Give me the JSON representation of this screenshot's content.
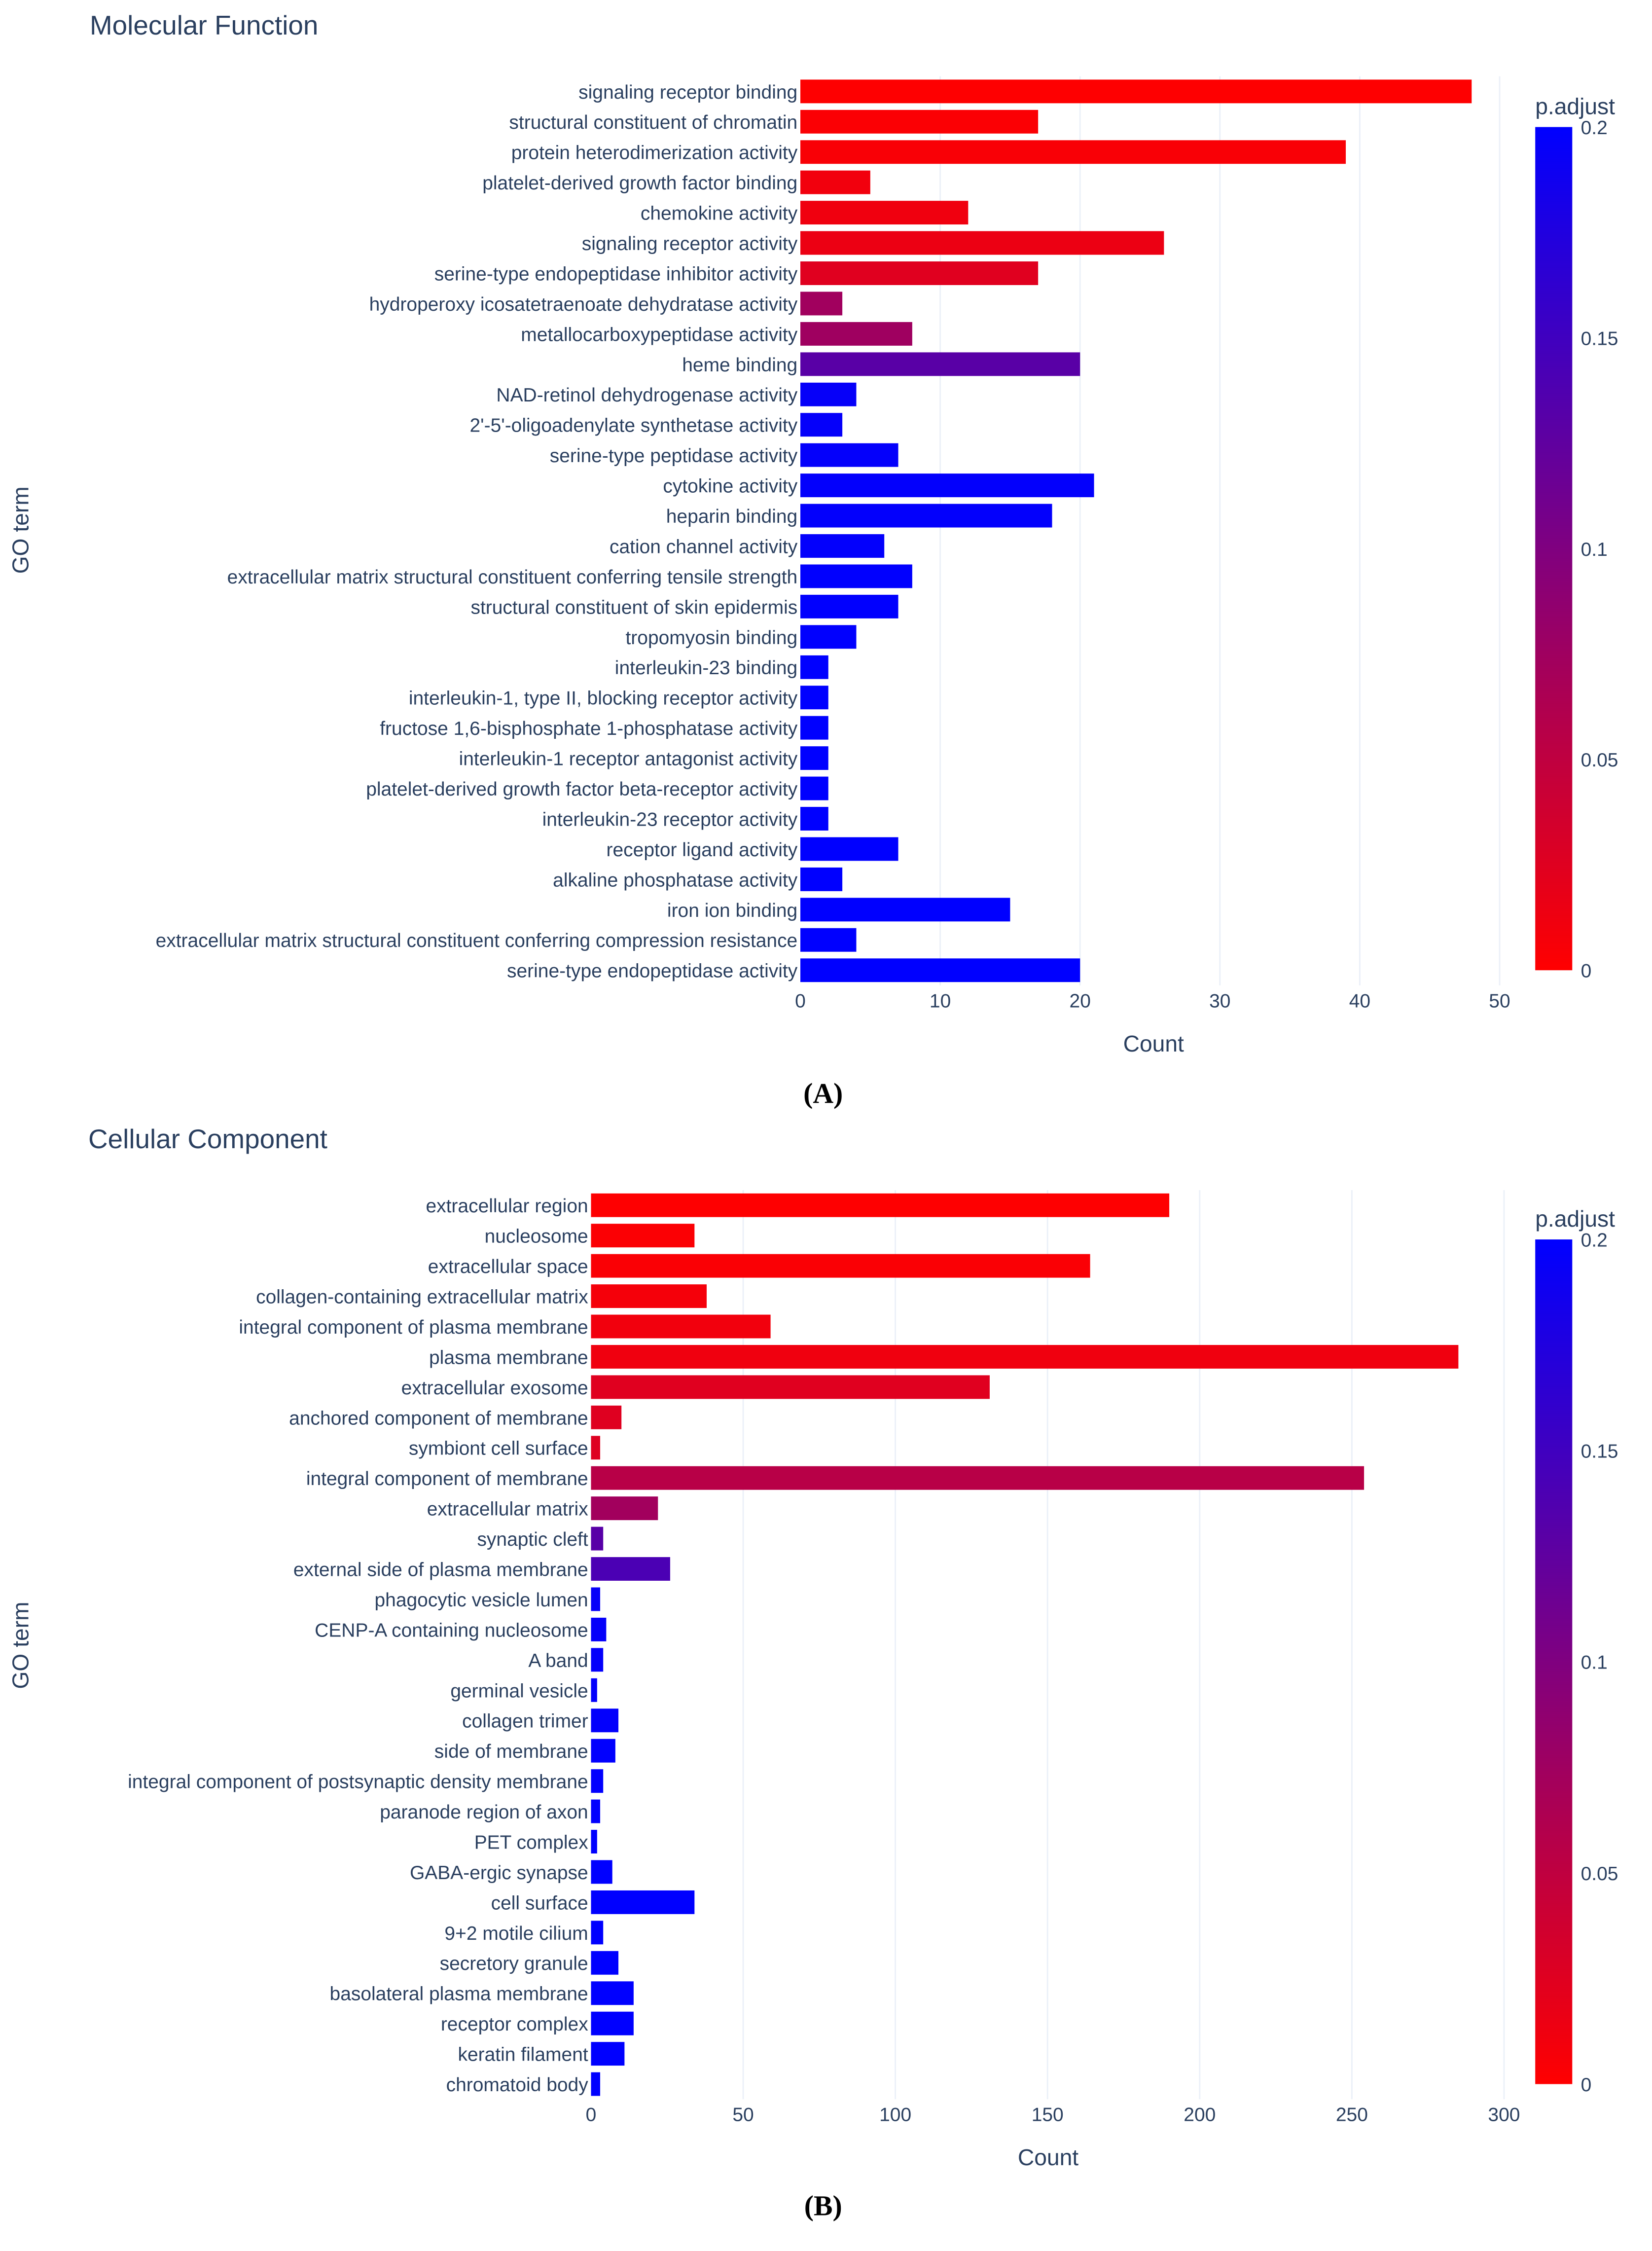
{
  "colors": {
    "low": "#ff0000",
    "high": "#0000ff"
  },
  "chart_data": [
    {
      "type": "bar",
      "orientation": "horizontal",
      "panel_label": "(A)",
      "title": "Molecular Function",
      "xlabel": "Count",
      "ylabel": "GO term",
      "xlim": [
        0,
        54
      ],
      "xticks": [
        0,
        10,
        20,
        30,
        40,
        50
      ],
      "grid": true,
      "colorbar": {
        "title": "p.adjust",
        "range": [
          0,
          0.2
        ],
        "ticks": [
          "0",
          "0.05",
          "0.1",
          "0.15",
          "0.2"
        ]
      },
      "categories": [
        "signaling receptor binding",
        "structural constituent of chromatin",
        "protein heterodimerization activity",
        "platelet-derived growth factor binding",
        "chemokine activity",
        "signaling receptor activity",
        "serine-type endopeptidase inhibitor activity",
        "hydroperoxy icosatetraenoate dehydratase activity",
        "metallocarboxypeptidase activity",
        "heme binding",
        "NAD-retinol dehydrogenase activity",
        "2'-5'-oligoadenylate synthetase activity",
        "serine-type peptidase activity",
        "cytokine activity",
        "heparin binding",
        "cation channel activity",
        "extracellular matrix structural constituent conferring tensile strength",
        "structural constituent of skin epidermis",
        "tropomyosin binding",
        "interleukin-23 binding",
        "interleukin-1, type II, blocking receptor activity",
        "fructose 1,6-bisphosphate 1-phosphatase activity",
        "interleukin-1 receptor antagonist activity",
        "platelet-derived growth factor beta-receptor activity",
        "interleukin-23 receptor activity",
        "receptor ligand activity",
        "alkaline phosphatase activity",
        "iron ion binding",
        "extracellular matrix structural constituent conferring compression resistance",
        "serine-type endopeptidase activity"
      ],
      "values": [
        48,
        17,
        39,
        5,
        12,
        26,
        17,
        3,
        8,
        20,
        4,
        3,
        7,
        21,
        18,
        6,
        8,
        7,
        4,
        2,
        2,
        2,
        2,
        2,
        2,
        7,
        3,
        15,
        4,
        20
      ],
      "p_adjust": [
        0.001,
        0.003,
        0.005,
        0.01,
        0.012,
        0.015,
        0.024,
        0.074,
        0.075,
        0.13,
        0.195,
        0.196,
        0.197,
        0.198,
        0.198,
        0.198,
        0.199,
        0.199,
        0.199,
        0.2,
        0.2,
        0.2,
        0.2,
        0.2,
        0.2,
        0.2,
        0.2,
        0.2,
        0.2,
        0.2
      ]
    },
    {
      "type": "bar",
      "orientation": "horizontal",
      "panel_label": "(B)",
      "title": "Cellular Component",
      "xlabel": "Count",
      "ylabel": "GO term",
      "xlim": [
        0,
        305
      ],
      "xticks": [
        0,
        50,
        100,
        150,
        200,
        250,
        300
      ],
      "grid": true,
      "colorbar": {
        "title": "p.adjust",
        "range": [
          0,
          0.2
        ],
        "ticks": [
          "0",
          "0.05",
          "0.1",
          "0.15",
          "0.2"
        ]
      },
      "categories": [
        "extracellular region",
        "nucleosome",
        "extracellular space",
        "collagen-containing extracellular matrix",
        "integral component of plasma membrane",
        "plasma membrane",
        "extracellular exosome",
        "anchored component of membrane",
        "symbiont cell surface",
        "integral component of membrane",
        "extracellular matrix",
        "synaptic cleft",
        "external side of plasma membrane",
        "phagocytic vesicle lumen",
        "CENP-A containing nucleosome",
        "A band",
        "germinal vesicle",
        "collagen trimer",
        "side of membrane",
        "integral component of postsynaptic density membrane",
        "paranode region of axon",
        "PET complex",
        "GABA-ergic synapse",
        "cell surface",
        "9+2 motile cilium",
        "secretory granule",
        "basolateral plasma membrane",
        "receptor complex",
        "keratin filament",
        "chromatoid body"
      ],
      "values": [
        190,
        34,
        164,
        38,
        59,
        285,
        131,
        10,
        3,
        254,
        22,
        4,
        26,
        3,
        5,
        4,
        2,
        9,
        8,
        4,
        3,
        2,
        7,
        34,
        4,
        9,
        14,
        14,
        11,
        3
      ],
      "p_adjust": [
        0.001,
        0.003,
        0.004,
        0.008,
        0.01,
        0.012,
        0.024,
        0.025,
        0.026,
        0.056,
        0.073,
        0.131,
        0.141,
        0.195,
        0.196,
        0.197,
        0.198,
        0.198,
        0.199,
        0.199,
        0.199,
        0.2,
        0.2,
        0.2,
        0.2,
        0.2,
        0.2,
        0.2,
        0.2,
        0.2
      ]
    }
  ]
}
